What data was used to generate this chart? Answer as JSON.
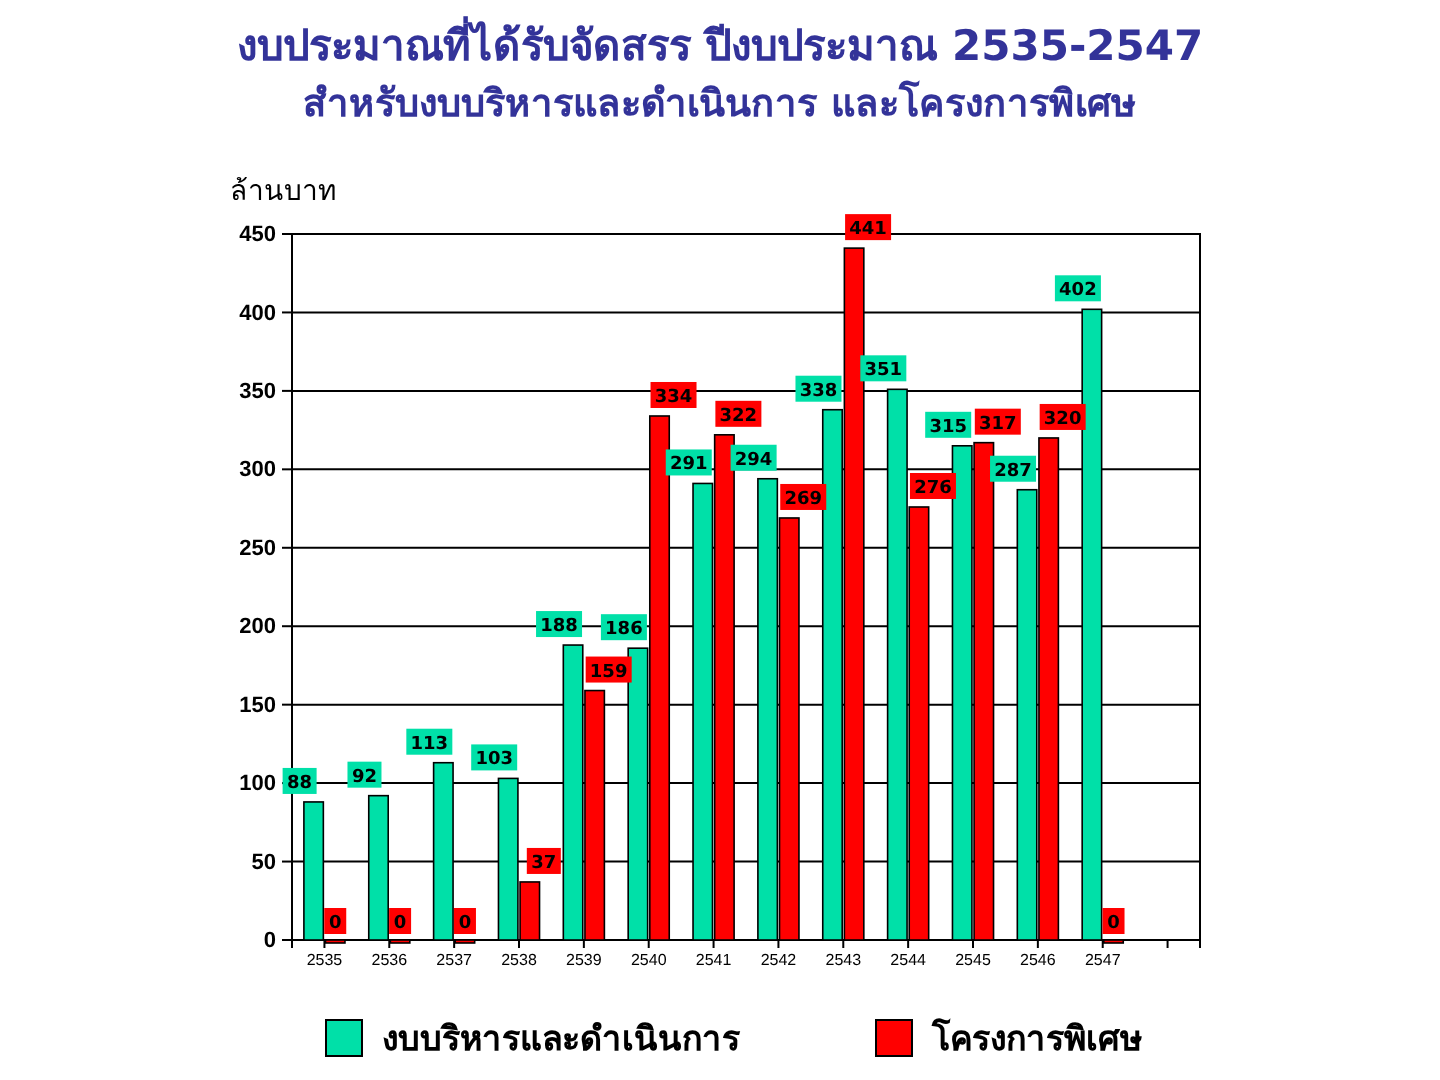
{
  "chart_data": {
    "type": "bar",
    "title": "งบประมาณที่ได้รับจัดสรร ปีงบประมาณ 2535-2547",
    "subtitle": "สำหรับงบบริหารและดำเนินการ และโครงการพิเศษ",
    "ylabel": "ล้านบาท",
    "categories": [
      "2535",
      "2536",
      "2537",
      "2538",
      "2539",
      "2540",
      "2541",
      "2542",
      "2543",
      "2544",
      "2545",
      "2546",
      "2547",
      null
    ],
    "series": [
      {
        "name": "งบบริหารและดำเนินการ",
        "color": "#00e0a8",
        "values": [
          88,
          92,
          113,
          103,
          188,
          186,
          291,
          294,
          338,
          351,
          315,
          287,
          402,
          null
        ]
      },
      {
        "name": "โครงการพิเศษ",
        "color": "#ff0000",
        "values": [
          0,
          0,
          0,
          37,
          159,
          334,
          322,
          269,
          441,
          276,
          317,
          320,
          0,
          null
        ]
      }
    ],
    "ylim": [
      0,
      450
    ],
    "yticks": [
      0,
      50,
      100,
      150,
      200,
      250,
      300,
      350,
      400,
      450
    ],
    "grid": "y",
    "legend": "bottom",
    "data_labels": true
  }
}
